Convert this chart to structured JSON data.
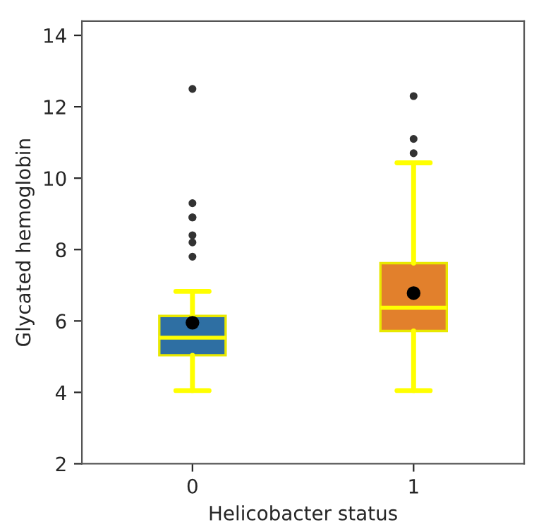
{
  "chart_data": {
    "type": "box",
    "xlabel": "Helicobacter status",
    "ylabel": "Glycated hemoglobin",
    "categories": [
      "0",
      "1"
    ],
    "colors": [
      "#2e6fa3",
      "#e2802c"
    ],
    "boxes": [
      {
        "low": 4.05,
        "q1": 5.04,
        "median": 5.53,
        "q3": 6.14,
        "high": 6.83,
        "mean": 5.95,
        "outliers": [
          7.8,
          8.2,
          8.4,
          8.9,
          8.9,
          9.3,
          12.5
        ]
      },
      {
        "low": 4.05,
        "q1": 5.72,
        "median": 6.37,
        "q3": 7.62,
        "high": 10.43,
        "mean": 6.78,
        "outliers": [
          10.7,
          11.1,
          12.3
        ]
      }
    ],
    "ylim": [
      2,
      14.4
    ],
    "yticks": [
      2,
      4,
      6,
      8,
      10,
      12,
      14
    ],
    "grid": false
  }
}
